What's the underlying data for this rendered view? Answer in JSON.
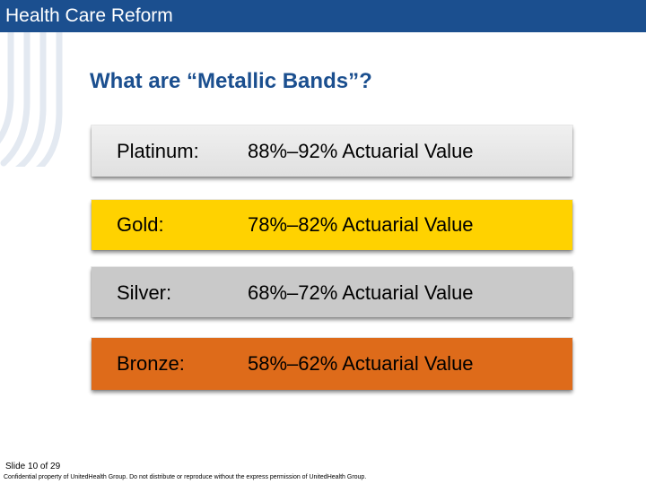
{
  "header": {
    "title": "Health Care Reform",
    "color": "#1b4f8f"
  },
  "slide": {
    "title": "What are “Metallic Bands”?"
  },
  "bands": [
    {
      "label": "Platinum:",
      "value": "88%–92% Actuarial Value",
      "color": "#e6e6e6"
    },
    {
      "label": "Gold:",
      "value": "78%–82% Actuarial Value",
      "color": "#ffd200"
    },
    {
      "label": "Silver:",
      "value": "68%–72% Actuarial Value",
      "color": "#c9c9c9"
    },
    {
      "label": "Bronze:",
      "value": "58%–62% Actuarial Value",
      "color": "#de6b1a"
    }
  ],
  "footer": {
    "slide_number": "Slide 10 of 29",
    "confidential": "Confidential property of UnitedHealth Group. Do not distribute or reproduce without the express permission of UnitedHealth Group."
  }
}
